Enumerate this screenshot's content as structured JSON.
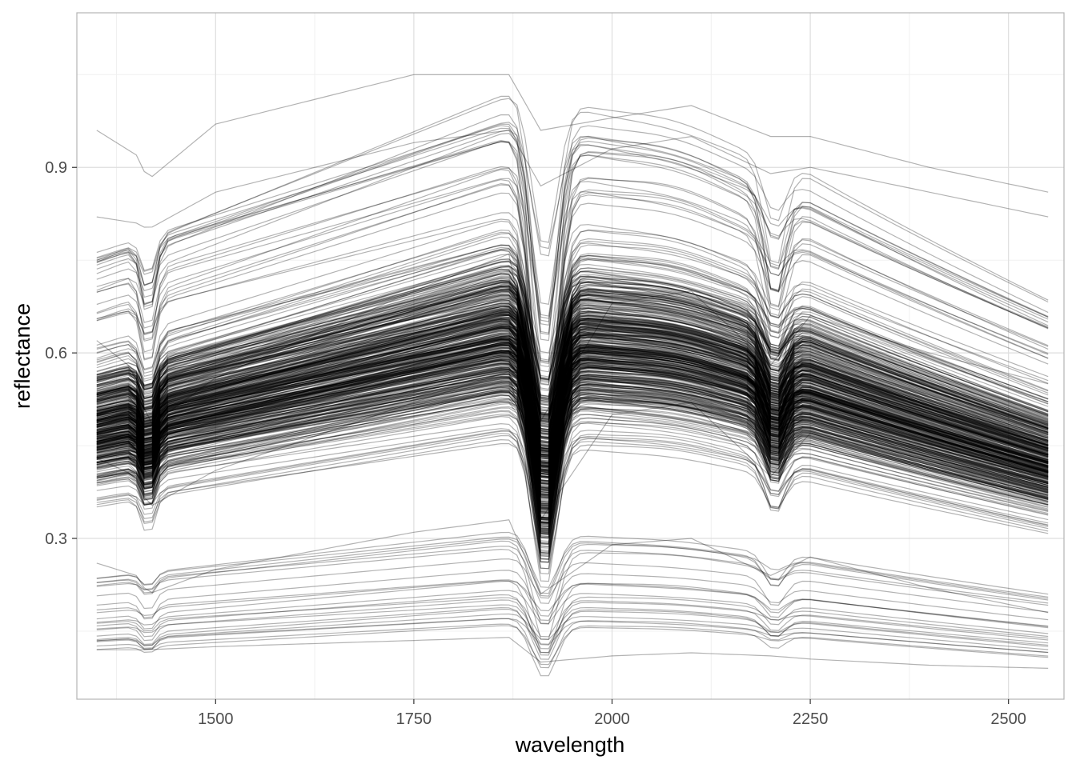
{
  "chart_data": {
    "type": "line",
    "title": "",
    "xlabel": "wavelength",
    "ylabel": "reflectance",
    "xlim": [
      1325,
      2570
    ],
    "ylim": [
      0.04,
      1.15
    ],
    "x_ticks": [
      1500,
      1750,
      2000,
      2250,
      2500
    ],
    "x_tick_labels": [
      "1500",
      "1750",
      "2000",
      "2250",
      "2500"
    ],
    "x_minor_ticks": [
      1375,
      1625,
      1875,
      2125,
      2375
    ],
    "y_ticks": [
      0.3,
      0.6,
      0.9
    ],
    "y_tick_labels": [
      "0.3",
      "0.6",
      "0.9"
    ],
    "y_minor_ticks": [
      0.15,
      0.45,
      0.75,
      1.05
    ],
    "grid": true,
    "legend": "none",
    "line_color": "#000000",
    "line_opacity": 0.3,
    "x_range": [
      1350,
      2550
    ],
    "series_count": 500,
    "representative_series": [
      {
        "x": [
          1350,
          1400,
          1415,
          1500,
          1750,
          1870,
          1910,
          2000,
          2100,
          2200,
          2250,
          2400,
          2550
        ],
        "y": [
          0.96,
          0.92,
          0.88,
          0.97,
          1.05,
          1.05,
          0.96,
          0.98,
          1.0,
          0.95,
          0.95,
          0.9,
          0.86
        ]
      },
      {
        "x": [
          1350,
          1400,
          1415,
          1500,
          1750,
          1870,
          1910,
          2000,
          2100,
          2200,
          2250,
          2400,
          2550
        ],
        "y": [
          0.82,
          0.81,
          0.8,
          0.86,
          0.94,
          0.96,
          0.87,
          0.93,
          0.95,
          0.89,
          0.9,
          0.86,
          0.82
        ]
      },
      {
        "x": [
          1350,
          1400,
          1415,
          1500,
          1750,
          1870,
          1910,
          2000,
          2100,
          2200,
          2250,
          2400,
          2550
        ],
        "y": [
          0.62,
          0.57,
          0.48,
          0.56,
          0.7,
          0.76,
          0.49,
          0.68,
          0.7,
          0.58,
          0.66,
          0.6,
          0.55
        ]
      },
      {
        "x": [
          1350,
          1400,
          1415,
          1500,
          1750,
          1870,
          1910,
          2000,
          2100,
          2200,
          2250,
          2400,
          2550
        ],
        "y": [
          0.43,
          0.4,
          0.35,
          0.41,
          0.52,
          0.57,
          0.33,
          0.5,
          0.52,
          0.4,
          0.47,
          0.41,
          0.36
        ]
      },
      {
        "x": [
          1350,
          1400,
          1415,
          1500,
          1750,
          1870,
          1910,
          2000,
          2100,
          2200,
          2250,
          2400,
          2550
        ],
        "y": [
          0.26,
          0.24,
          0.21,
          0.25,
          0.31,
          0.33,
          0.21,
          0.29,
          0.3,
          0.24,
          0.27,
          0.22,
          0.18
        ]
      },
      {
        "x": [
          1350,
          1400,
          1415,
          1500,
          1750,
          1870,
          1910,
          2000,
          2100,
          2200,
          2250,
          2400,
          2550
        ],
        "y": [
          0.12,
          0.12,
          0.12,
          0.125,
          0.135,
          0.14,
          0.1,
          0.11,
          0.115,
          0.11,
          0.105,
          0.095,
          0.09
        ]
      }
    ]
  }
}
